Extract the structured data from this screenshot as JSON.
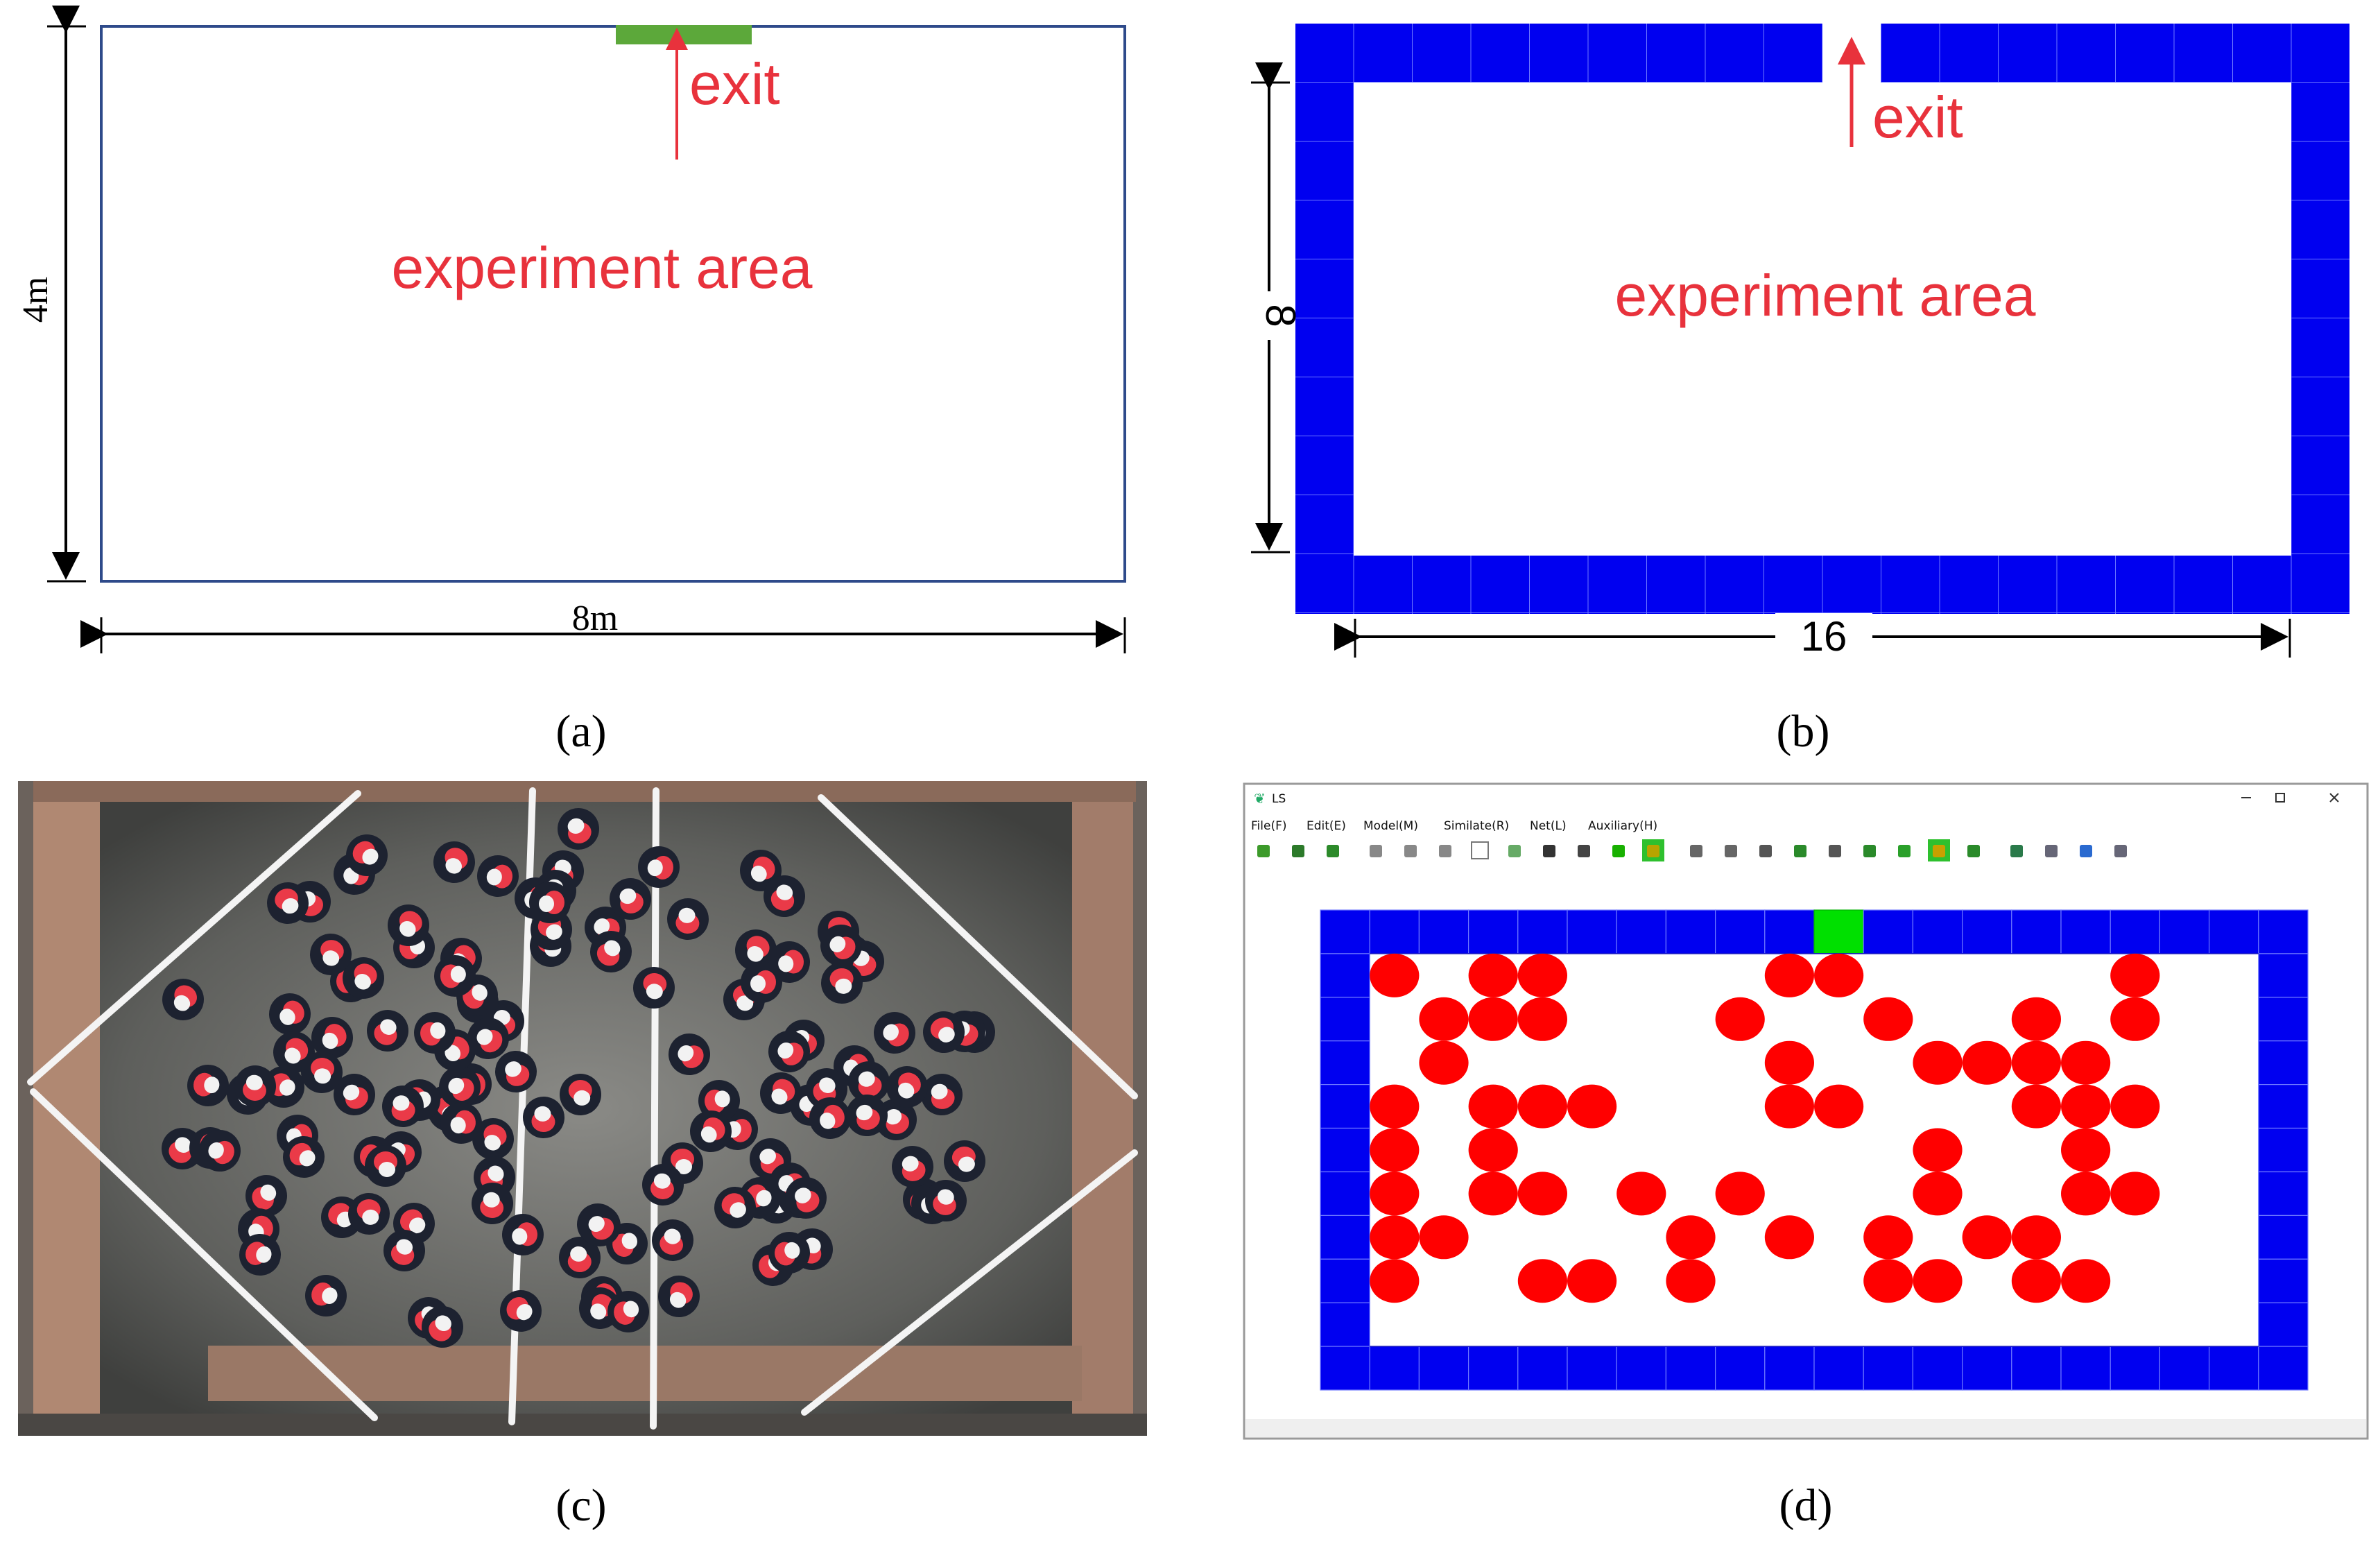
{
  "panels": {
    "a": {
      "caption": "(a)",
      "exit_label": "exit",
      "area_label": "experiment area",
      "height_label": "4m",
      "width_label": "8m"
    },
    "b": {
      "caption": "(b)",
      "exit_label": "exit",
      "area_label": "experiment area",
      "height_label": "8",
      "width_label": "16"
    },
    "c": {
      "caption": "(c)"
    },
    "d": {
      "caption": "(d)",
      "window_title": "LS",
      "menu": [
        "File(F)",
        "Edit(E)",
        "Model(M)",
        "Similate(R)",
        "Net(L)",
        "Auxiliary(H)"
      ],
      "window_controls": [
        "minimize",
        "maximize",
        "close"
      ],
      "toolbar_icons": [
        "open-icon",
        "grid-icon",
        "hand-icon",
        "wall-icon",
        "person-icon",
        "shape-icon",
        "text-icon",
        "text-a-icon",
        "exit-icon",
        "settings-icon",
        "run-icon",
        "pause-icon",
        "scissors-icon",
        "crop-icon",
        "doc-icon",
        "cross-icon",
        "node-icon",
        "link-icon",
        "copy-icon",
        "target-icon",
        "chart-icon",
        "save-icon",
        "undo-icon",
        "redo-icon",
        "forward-icon"
      ],
      "grid": {
        "cols": 18,
        "rows": 9,
        "exit_col": 9,
        "pedestrians": [
          [
            0,
            1
          ],
          [
            2,
            1
          ],
          [
            3,
            1
          ],
          [
            8,
            1
          ],
          [
            9,
            1
          ],
          [
            15,
            1
          ],
          [
            1,
            2
          ],
          [
            2,
            2
          ],
          [
            3,
            2
          ],
          [
            7,
            2
          ],
          [
            10,
            2
          ],
          [
            13,
            2
          ],
          [
            15,
            2
          ],
          [
            1,
            3
          ],
          [
            8,
            3
          ],
          [
            11,
            3
          ],
          [
            12,
            3
          ],
          [
            13,
            3
          ],
          [
            14,
            3
          ],
          [
            0,
            4
          ],
          [
            2,
            4
          ],
          [
            3,
            4
          ],
          [
            4,
            4
          ],
          [
            8,
            4
          ],
          [
            9,
            4
          ],
          [
            13,
            4
          ],
          [
            14,
            4
          ],
          [
            15,
            4
          ],
          [
            0,
            5
          ],
          [
            2,
            5
          ],
          [
            11,
            5
          ],
          [
            14,
            5
          ],
          [
            0,
            6
          ],
          [
            2,
            6
          ],
          [
            3,
            6
          ],
          [
            5,
            6
          ],
          [
            7,
            6
          ],
          [
            11,
            6
          ],
          [
            14,
            6
          ],
          [
            15,
            6
          ],
          [
            0,
            7
          ],
          [
            1,
            7
          ],
          [
            6,
            7
          ],
          [
            8,
            7
          ],
          [
            10,
            7
          ],
          [
            12,
            7
          ],
          [
            13,
            7
          ],
          [
            0,
            8
          ],
          [
            3,
            8
          ],
          [
            4,
            8
          ],
          [
            6,
            8
          ],
          [
            10,
            8
          ],
          [
            11,
            8
          ],
          [
            13,
            8
          ],
          [
            14,
            8
          ]
        ]
      }
    }
  },
  "colors": {
    "wall": "#0000f0",
    "exit": "#00e000",
    "exit_a": "#5ca83a",
    "pedestrian": "#ff0000",
    "label": "#e8323c"
  }
}
